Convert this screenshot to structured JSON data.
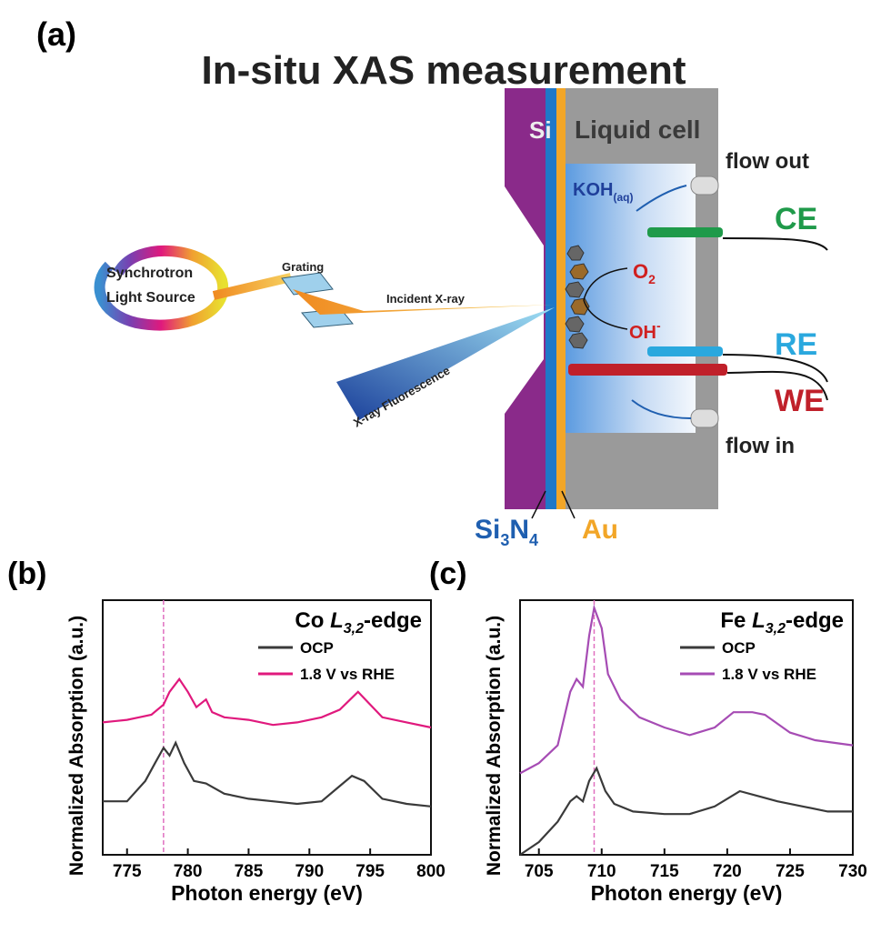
{
  "diagram": {
    "panel_label": "(a)",
    "title": "In-situ XAS measurement",
    "labels": {
      "si": "Si",
      "liquid_cell": "Liquid cell",
      "flow_out": "flow out",
      "koh": "KOH",
      "koh_sub": "(aq)",
      "ce": "CE",
      "synchrotron": "Synchrotron",
      "light_source": "Light Source",
      "grating": "Grating",
      "incident": "Incident X-ray",
      "o": "O",
      "o_sub": "2",
      "oh": "OH",
      "oh_sup": "-",
      "re": "RE",
      "we": "WE",
      "fluorescence": "X-ray Fluorescence",
      "flow_in": "flow in",
      "si3n4_si": "Si",
      "si3n4_3": "3",
      "si3n4_n": "N",
      "si3n4_4": "4",
      "au": "Au"
    }
  },
  "chart_data": [
    {
      "type": "line",
      "panel_label": "(b)",
      "title_prefix": "Co ",
      "title_element": "L",
      "title_subscript": "3,2",
      "title_suffix": "-edge",
      "x_label": "Photon energy (eV)",
      "y_label": "Normalized Absorption (a.u.)",
      "xlim": [
        773,
        800
      ],
      "xticks": [
        775,
        780,
        785,
        790,
        795,
        800
      ],
      "ylim": [
        0,
        1
      ],
      "annotation_line_x": 778,
      "annotation_color": "#e070c0",
      "series": [
        {
          "name": "OCP",
          "color": "#3a3a3a",
          "x": [
            773,
            775,
            776.5,
            777.3,
            778,
            778.5,
            779,
            779.7,
            780.5,
            781.5,
            783,
            785,
            787,
            789,
            791,
            792.5,
            793.5,
            794.5,
            796,
            798,
            800
          ],
          "values": [
            0.21,
            0.21,
            0.29,
            0.36,
            0.42,
            0.39,
            0.44,
            0.36,
            0.29,
            0.28,
            0.24,
            0.22,
            0.21,
            0.2,
            0.21,
            0.27,
            0.31,
            0.29,
            0.22,
            0.2,
            0.19
          ]
        },
        {
          "name": "1.8 V vs RHE",
          "color": "#e0197d",
          "x": [
            773,
            775,
            776,
            777,
            778,
            778.5,
            779.3,
            780,
            780.7,
            781.5,
            782,
            783,
            785,
            787,
            789,
            791,
            792.5,
            794,
            795,
            796,
            798,
            800
          ],
          "values": [
            0.52,
            0.53,
            0.54,
            0.55,
            0.59,
            0.64,
            0.69,
            0.64,
            0.58,
            0.61,
            0.56,
            0.54,
            0.53,
            0.51,
            0.52,
            0.54,
            0.57,
            0.64,
            0.59,
            0.54,
            0.52,
            0.5
          ]
        }
      ]
    },
    {
      "type": "line",
      "panel_label": "(c)",
      "title_prefix": "Fe ",
      "title_element": "L",
      "title_subscript": "3,2",
      "title_suffix": "-edge",
      "x_label": "Photon energy (eV)",
      "y_label": "Normalized Absorption (a.u.)",
      "xlim": [
        703.5,
        730
      ],
      "xticks": [
        705,
        710,
        715,
        720,
        725,
        730
      ],
      "ylim": [
        0,
        1
      ],
      "annotation_line_x": 709.4,
      "annotation_color": "#e070c0",
      "series": [
        {
          "name": "OCP",
          "color": "#3a3a3a",
          "x": [
            703.5,
            705,
            706.5,
            707.5,
            708,
            708.5,
            709,
            709.6,
            710.3,
            711,
            712.5,
            715,
            717,
            719,
            721,
            722.5,
            724,
            726,
            728,
            730
          ],
          "values": [
            0.0,
            0.05,
            0.13,
            0.21,
            0.23,
            0.21,
            0.29,
            0.34,
            0.25,
            0.2,
            0.17,
            0.16,
            0.16,
            0.19,
            0.25,
            0.23,
            0.21,
            0.19,
            0.17,
            0.17
          ]
        },
        {
          "name": "1.8 V vs RHE",
          "color": "#a64cb4",
          "x": [
            703.5,
            705,
            706.5,
            707.5,
            708,
            708.5,
            709,
            709.4,
            710,
            710.5,
            711.5,
            713,
            715,
            717,
            719,
            720.5,
            722,
            723,
            725,
            727,
            730
          ],
          "values": [
            0.32,
            0.36,
            0.43,
            0.64,
            0.69,
            0.66,
            0.86,
            0.97,
            0.89,
            0.71,
            0.61,
            0.54,
            0.5,
            0.47,
            0.5,
            0.56,
            0.56,
            0.55,
            0.48,
            0.45,
            0.43
          ]
        }
      ]
    }
  ]
}
